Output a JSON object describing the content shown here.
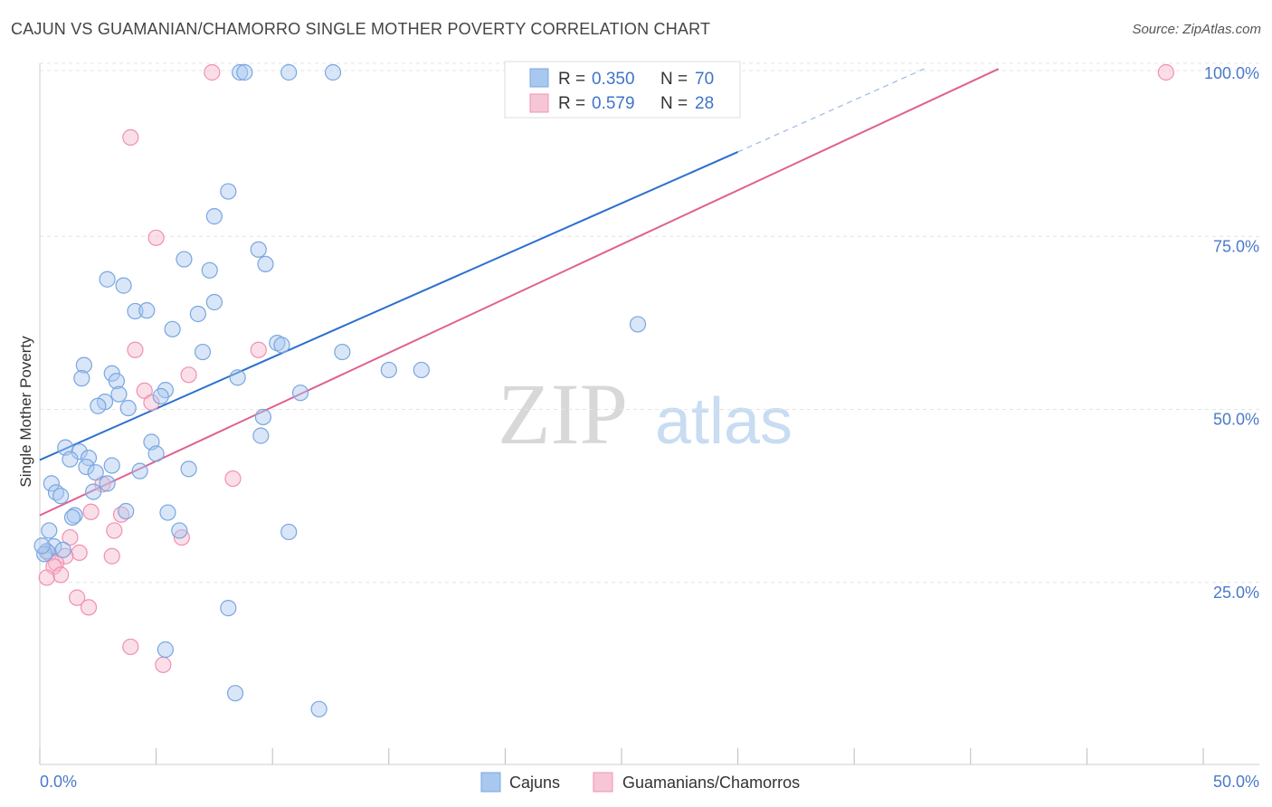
{
  "header": {
    "title": "CAJUN VS GUAMANIAN/CHAMORRO SINGLE MOTHER POVERTY CORRELATION CHART",
    "source": "Source: ZipAtlas.com"
  },
  "watermark": {
    "zip": "ZIP",
    "atlas": "atlas"
  },
  "colors": {
    "blue_fill": "#a8c8f0",
    "blue_stroke": "#7aa6e0",
    "blue_line": "#2a6fcf",
    "pink_fill": "#f7b8cc",
    "pink_stroke": "#f090b0",
    "pink_line": "#e06090",
    "tick_text": "#4a7ac8"
  },
  "legend": {
    "rows": [
      {
        "r_label": "R = ",
        "r_value": "0.350",
        "n_label": "N = ",
        "n_value": "70"
      },
      {
        "r_label": "R = ",
        "r_value": "0.579",
        "n_label": "N = ",
        "n_value": "28"
      }
    ]
  },
  "bottom_legend": [
    "Cajuns",
    "Guamanians/Chamorros"
  ],
  "chart_data": {
    "type": "scatter",
    "title": "CAJUN VS GUAMANIAN/CHAMORRO SINGLE MOTHER POVERTY CORRELATION CHART",
    "xlabel": "",
    "ylabel": "Single Mother Poverty",
    "xlim": [
      0,
      50
    ],
    "ylim": [
      0,
      102
    ],
    "x_tick_labels": [
      "0.0%",
      "50.0%"
    ],
    "y_ticks": [
      25,
      50,
      75,
      100
    ],
    "y_tick_labels": [
      "25.0%",
      "50.0%",
      "75.0%",
      "100.0%"
    ],
    "grid": true,
    "legend_position": "top-center",
    "series": [
      {
        "name": "Cajuns",
        "r": 0.35,
        "n": 70,
        "trend": {
          "x0": 0,
          "y0": 44.0,
          "x1": 30,
          "y1": 88.5,
          "dashed_to_x": 38,
          "dashed_to_y": 100.5
        },
        "points": [
          [
            8.6,
            100
          ],
          [
            8.8,
            100
          ],
          [
            10.7,
            100
          ],
          [
            12.6,
            100
          ],
          [
            8.1,
            82.8
          ],
          [
            7.5,
            79.2
          ],
          [
            9.4,
            74.4
          ],
          [
            6.2,
            73.0
          ],
          [
            9.7,
            72.3
          ],
          [
            7.3,
            71.4
          ],
          [
            2.9,
            70.1
          ],
          [
            3.6,
            69.2
          ],
          [
            7.5,
            66.8
          ],
          [
            4.1,
            65.5
          ],
          [
            4.6,
            65.6
          ],
          [
            6.8,
            65.1
          ],
          [
            25.7,
            63.6
          ],
          [
            5.7,
            62.9
          ],
          [
            10.2,
            60.9
          ],
          [
            10.4,
            60.6
          ],
          [
            7.0,
            59.6
          ],
          [
            13.0,
            59.6
          ],
          [
            1.9,
            57.7
          ],
          [
            15.0,
            57.0
          ],
          [
            16.4,
            57.0
          ],
          [
            3.1,
            56.5
          ],
          [
            1.8,
            55.8
          ],
          [
            8.5,
            55.9
          ],
          [
            3.3,
            55.4
          ],
          [
            5.4,
            54.1
          ],
          [
            11.2,
            53.7
          ],
          [
            3.4,
            53.5
          ],
          [
            5.2,
            53.2
          ],
          [
            2.8,
            52.4
          ],
          [
            2.5,
            51.8
          ],
          [
            3.8,
            51.5
          ],
          [
            9.6,
            50.2
          ],
          [
            9.5,
            47.5
          ],
          [
            4.8,
            46.6
          ],
          [
            1.1,
            45.8
          ],
          [
            1.7,
            45.2
          ],
          [
            5.0,
            44.9
          ],
          [
            2.1,
            44.3
          ],
          [
            1.3,
            44.1
          ],
          [
            2.0,
            43.0
          ],
          [
            3.1,
            43.2
          ],
          [
            6.4,
            42.7
          ],
          [
            4.3,
            42.4
          ],
          [
            2.4,
            42.2
          ],
          [
            0.5,
            40.6
          ],
          [
            2.9,
            40.6
          ],
          [
            0.7,
            39.3
          ],
          [
            0.9,
            38.8
          ],
          [
            2.3,
            39.4
          ],
          [
            1.5,
            36.0
          ],
          [
            3.7,
            36.6
          ],
          [
            5.5,
            36.4
          ],
          [
            1.4,
            35.7
          ],
          [
            0.4,
            33.8
          ],
          [
            6.0,
            33.8
          ],
          [
            10.7,
            33.6
          ],
          [
            0.6,
            31.5
          ],
          [
            1.0,
            31.0
          ],
          [
            0.3,
            30.8
          ],
          [
            0.2,
            30.4
          ],
          [
            8.1,
            22.6
          ],
          [
            5.4,
            16.6
          ],
          [
            8.4,
            10.3
          ],
          [
            12.0,
            8.0
          ],
          [
            0.1,
            31.6
          ]
        ]
      },
      {
        "name": "Guamanians/Chamorros",
        "r": 0.579,
        "n": 28,
        "trend": {
          "x0": 0,
          "y0": 36.0,
          "x1": 41.2,
          "y1": 100.5
        },
        "points": [
          [
            7.4,
            100
          ],
          [
            48.4,
            100
          ],
          [
            3.9,
            90.6
          ],
          [
            5.0,
            76.1
          ],
          [
            4.1,
            59.9
          ],
          [
            9.4,
            59.9
          ],
          [
            6.4,
            56.3
          ],
          [
            4.5,
            54.0
          ],
          [
            4.8,
            52.3
          ],
          [
            8.3,
            41.3
          ],
          [
            2.7,
            40.5
          ],
          [
            2.2,
            36.5
          ],
          [
            3.5,
            36.1
          ],
          [
            3.2,
            33.8
          ],
          [
            6.1,
            32.8
          ],
          [
            1.3,
            32.8
          ],
          [
            1.7,
            30.6
          ],
          [
            3.1,
            30.1
          ],
          [
            1.1,
            30.1
          ],
          [
            0.4,
            30.5
          ],
          [
            0.7,
            29.1
          ],
          [
            0.6,
            28.6
          ],
          [
            0.9,
            27.4
          ],
          [
            0.3,
            27.0
          ],
          [
            1.6,
            24.1
          ],
          [
            2.1,
            22.7
          ],
          [
            3.9,
            17.0
          ],
          [
            5.3,
            14.4
          ]
        ]
      }
    ]
  }
}
